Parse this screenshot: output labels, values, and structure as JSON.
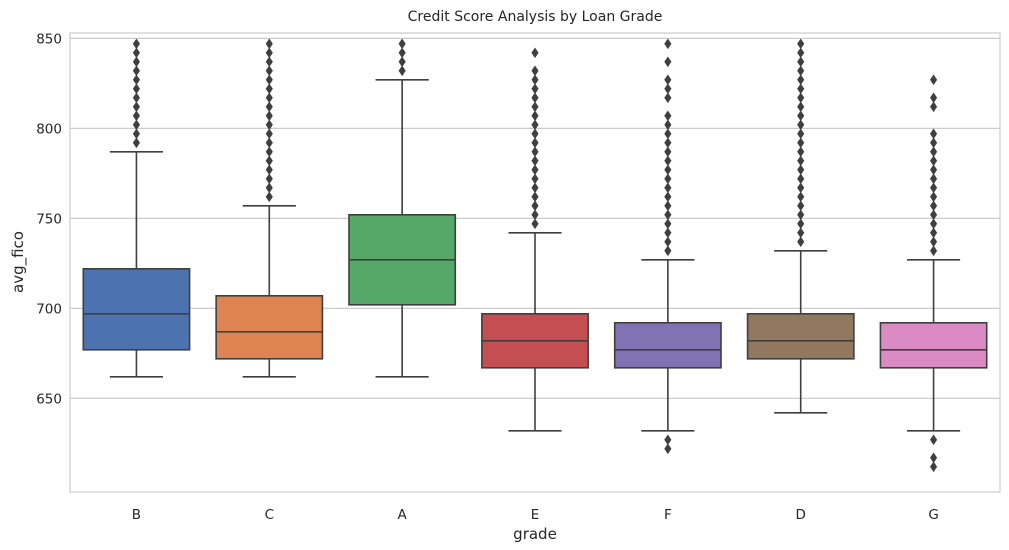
{
  "chart_data": {
    "type": "box",
    "title": "Credit Score Analysis by Loan Grade",
    "xlabel": "grade",
    "ylabel": "avg_fico",
    "categories": [
      "B",
      "C",
      "A",
      "E",
      "F",
      "D",
      "G"
    ],
    "y_ticks": [
      650,
      700,
      750,
      800,
      850
    ],
    "ylim": [
      598,
      853
    ],
    "grid": true,
    "boxes": [
      {
        "category": "B",
        "color": "#4c72b0",
        "whisker_low": 662,
        "q1": 677,
        "median": 697,
        "q3": 722,
        "whisker_high": 787,
        "outliers": [
          792,
          797,
          802,
          807,
          812,
          817,
          822,
          827,
          832,
          837,
          842,
          847
        ]
      },
      {
        "category": "C",
        "color": "#dd8452",
        "whisker_low": 662,
        "q1": 672,
        "median": 687,
        "q3": 707,
        "whisker_high": 757,
        "outliers": [
          762,
          767,
          772,
          777,
          782,
          787,
          792,
          797,
          802,
          807,
          812,
          817,
          822,
          827,
          832,
          837,
          842,
          847
        ]
      },
      {
        "category": "A",
        "color": "#55a868",
        "whisker_low": 662,
        "q1": 702,
        "median": 727,
        "q3": 752,
        "whisker_high": 827,
        "outliers": [
          832,
          837,
          842,
          847
        ]
      },
      {
        "category": "E",
        "color": "#c44e52",
        "whisker_low": 632,
        "q1": 667,
        "median": 682,
        "q3": 697,
        "whisker_high": 742,
        "outliers": [
          747,
          752,
          757,
          762,
          767,
          772,
          777,
          782,
          787,
          792,
          797,
          802,
          807,
          812,
          817,
          822,
          827,
          832,
          842
        ]
      },
      {
        "category": "F",
        "color": "#8172b3",
        "whisker_low": 632,
        "q1": 667,
        "median": 677,
        "q3": 692,
        "whisker_high": 727,
        "outliers": [
          622,
          627,
          732,
          737,
          742,
          747,
          752,
          757,
          762,
          767,
          772,
          777,
          782,
          787,
          792,
          797,
          802,
          807,
          817,
          822,
          827,
          837,
          847
        ]
      },
      {
        "category": "D",
        "color": "#937860",
        "whisker_low": 642,
        "q1": 672,
        "median": 682,
        "q3": 697,
        "whisker_high": 732,
        "outliers": [
          737,
          742,
          747,
          752,
          757,
          762,
          767,
          772,
          777,
          782,
          787,
          792,
          797,
          802,
          807,
          812,
          817,
          822,
          827,
          832,
          837,
          842,
          847
        ]
      },
      {
        "category": "G",
        "color": "#da8bc3",
        "whisker_low": 632,
        "q1": 667,
        "median": 677,
        "q3": 692,
        "whisker_high": 727,
        "outliers": [
          612,
          617,
          627,
          732,
          737,
          742,
          747,
          752,
          757,
          762,
          767,
          772,
          777,
          782,
          787,
          792,
          797,
          812,
          817,
          827
        ]
      }
    ]
  }
}
